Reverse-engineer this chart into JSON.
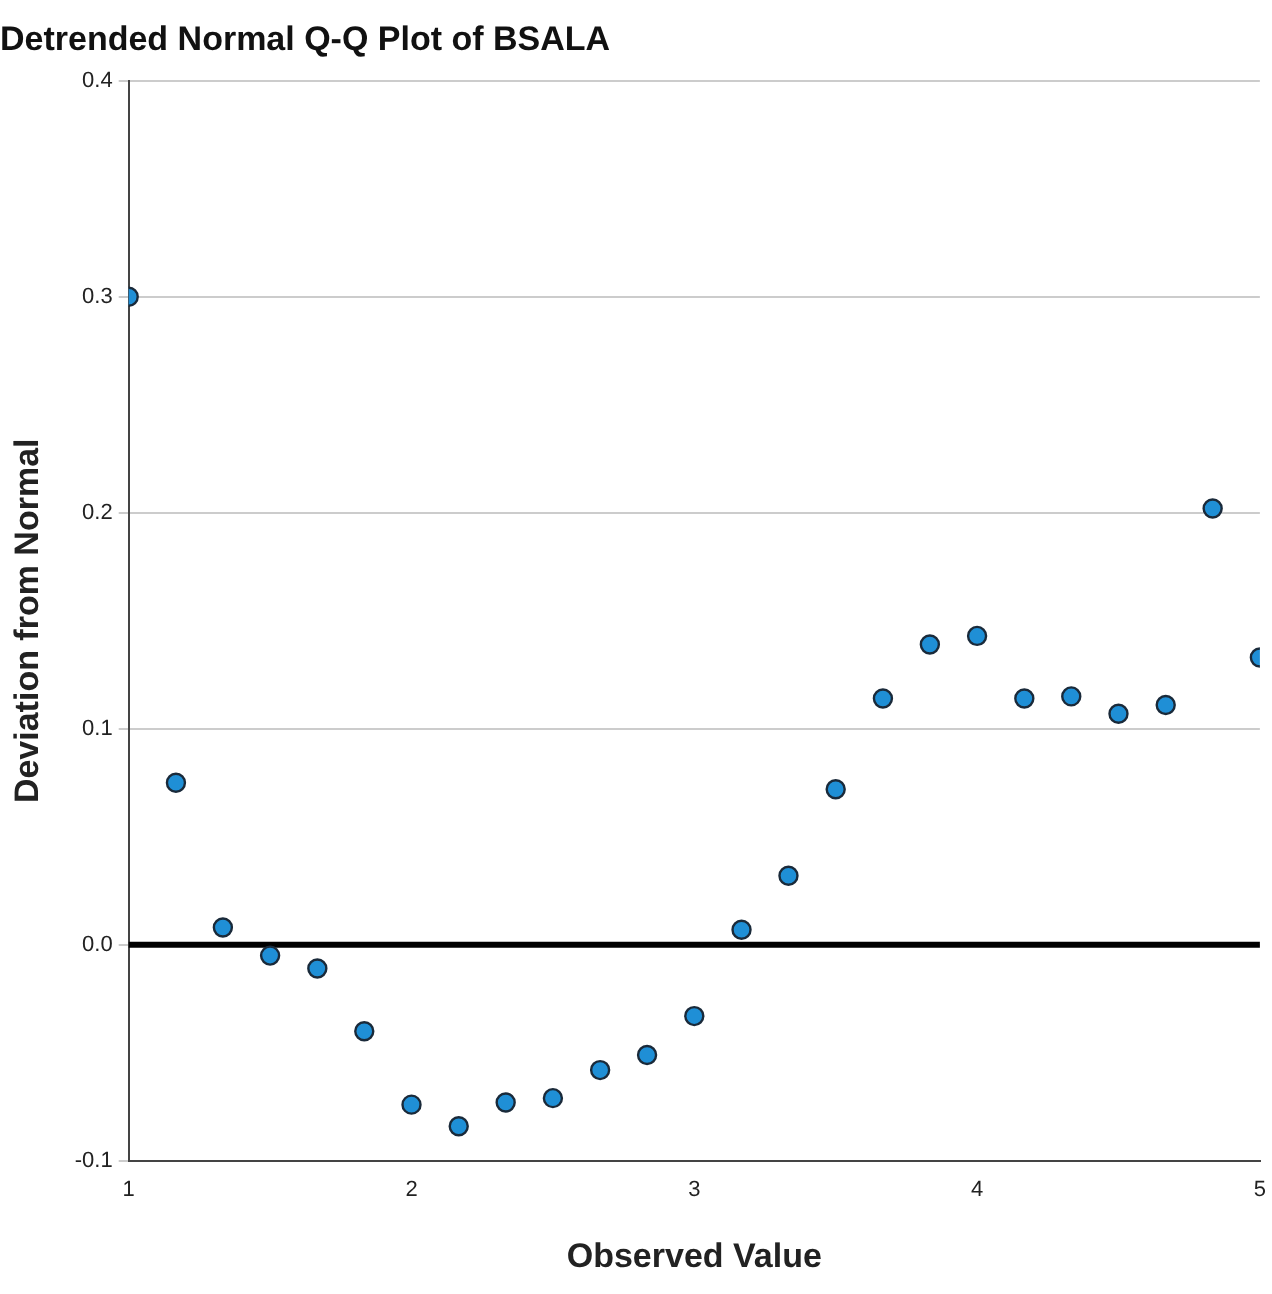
{
  "chart_data": {
    "type": "scatter",
    "title": "Detrended Normal Q-Q Plot of BSALA",
    "xlabel": "Observed Value",
    "ylabel": "Deviation from Normal",
    "x": [
      1,
      1.167,
      1.333,
      1.5,
      1.667,
      1.833,
      2,
      2.167,
      2.333,
      2.5,
      2.667,
      2.833,
      3,
      3.167,
      3.333,
      3.5,
      3.667,
      3.833,
      4,
      4.167,
      4.333,
      4.5,
      4.667,
      4.833,
      5
    ],
    "series": [
      {
        "color": "#1f8fd6",
        "values": [
          0.3,
          0.075,
          0.008,
          -0.005,
          -0.011,
          -0.04,
          -0.074,
          -0.084,
          -0.073,
          -0.071,
          -0.058,
          -0.051,
          -0.033,
          0.007,
          0.032,
          0.072,
          0.114,
          0.139,
          0.143,
          0.114,
          0.115,
          0.107,
          0.111,
          0.202,
          0.133
        ]
      }
    ],
    "xlim": [
      1,
      5
    ],
    "xticks": [
      1,
      2,
      3,
      4,
      5
    ],
    "ylim": [
      -0.1,
      0.4
    ],
    "yticks": [
      {
        "value": -0.1,
        "label": "-0.1"
      },
      {
        "value": 0,
        "label": "0.0"
      },
      {
        "value": 0.1,
        "label": "0.1"
      },
      {
        "value": 0.2,
        "label": "0.2"
      },
      {
        "value": 0.3,
        "label": "0.3"
      },
      {
        "value": 0.4,
        "label": "0.4"
      }
    ],
    "grid": "y",
    "marker": "circle",
    "legend": false,
    "ref_lines": [
      {
        "axis": "y",
        "value": 0,
        "color": "#000000"
      }
    ]
  }
}
